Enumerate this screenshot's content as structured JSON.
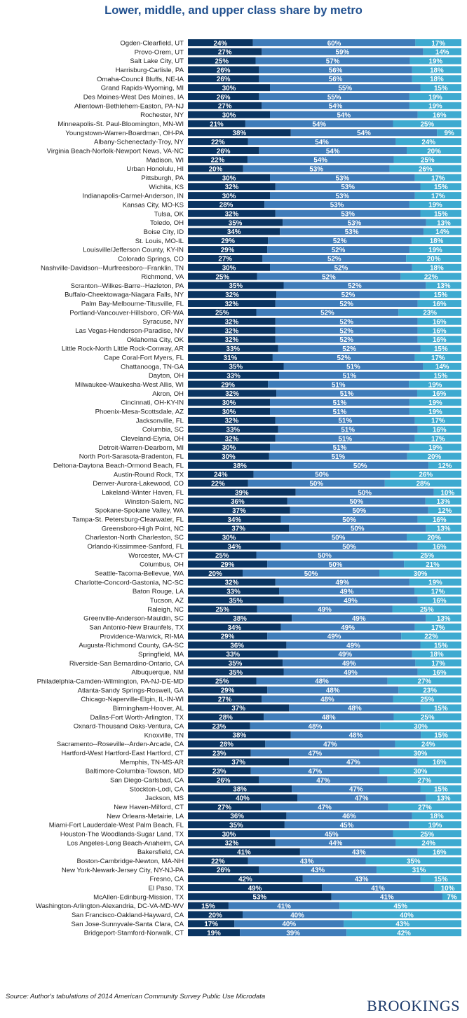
{
  "colors": {
    "lower": "#0b3562",
    "middle": "#3f7cb9",
    "upper": "#3eaad0",
    "title": "#1f4f8e"
  },
  "chart_data": {
    "type": "bar",
    "orientation": "horizontal",
    "stacked": true,
    "title": "Lower, middle, and upper class share by metro",
    "value_format": "percent",
    "xlim": [
      0,
      100
    ],
    "grid": false,
    "categories": [
      "Ogden-Clearfield, UT",
      "Provo-Orem, UT",
      "Salt Lake City, UT",
      "Harrisburg-Carlisle, PA",
      "Omaha-Council Bluffs, NE-IA",
      "Grand Rapids-Wyoming, MI",
      "Des Moines-West Des Moines, IA",
      "Allentown-Bethlehem-Easton, PA-NJ",
      "Rochester, NY",
      "Minneapolis-St. Paul-Bloomington, MN-WI",
      "Youngstown-Warren-Boardman, OH-PA",
      "Albany-Schenectady-Troy, NY",
      "Virginia Beach-Norfolk-Newport News, VA-NC",
      "Madison, WI",
      "Urban Honolulu, HI",
      "Pittsburgh, PA",
      "Wichita, KS",
      "Indianapolis-Carmel-Anderson, IN",
      "Kansas City, MO-KS",
      "Tulsa, OK",
      "Toledo, OH",
      "Boise City, ID",
      "St. Louis, MO-IL",
      "Louisville/Jefferson County, KY-IN",
      "Colorado Springs, CO",
      "Nashville-Davidson--Murfreesboro--Franklin, TN",
      "Richmond, VA",
      "Scranton--Wilkes-Barre--Hazleton, PA",
      "Buffalo-Cheektowaga-Niagara Falls, NY",
      "Palm Bay-Melbourne-Titusville, FL",
      "Portland-Vancouver-Hillsboro, OR-WA",
      "Syracuse, NY",
      "Las Vegas-Henderson-Paradise, NV",
      "Oklahoma City, OK",
      "Little Rock-North Little Rock-Conway, AR",
      "Cape Coral-Fort Myers, FL",
      "Chattanooga, TN-GA",
      "Dayton, OH",
      "Milwaukee-Waukesha-West Allis, WI",
      "Akron, OH",
      "Cincinnati, OH-KY-IN",
      "Phoenix-Mesa-Scottsdale, AZ",
      "Jacksonville, FL",
      "Columbia, SC",
      "Cleveland-Elyria, OH",
      "Detroit-Warren-Dearborn, MI",
      "North Port-Sarasota-Bradenton, FL",
      "Deltona-Daytona Beach-Ormond Beach, FL",
      "Austin-Round Rock, TX",
      "Denver-Aurora-Lakewood, CO",
      "Lakeland-Winter Haven, FL",
      "Winston-Salem, NC",
      "Spokane-Spokane Valley, WA",
      "Tampa-St. Petersburg-Clearwater, FL",
      "Greensboro-High Point, NC",
      "Charleston-North Charleston, SC",
      "Orlando-Kissimmee-Sanford, FL",
      "Worcester, MA-CT",
      "Columbus, OH",
      "Seattle-Tacoma-Bellevue, WA",
      "Charlotte-Concord-Gastonia, NC-SC",
      "Baton Rouge, LA",
      "Tucson, AZ",
      "Raleigh, NC",
      "Greenville-Anderson-Mauldin, SC",
      "San Antonio-New Braunfels, TX",
      "Providence-Warwick, RI-MA",
      "Augusta-Richmond County, GA-SC",
      "Springfield, MA",
      "Riverside-San Bernardino-Ontario, CA",
      "Albuquerque, NM",
      "Philadelphia-Camden-Wilmington, PA-NJ-DE-MD",
      "Atlanta-Sandy Springs-Roswell, GA",
      "Chicago-Naperville-Elgin, IL-IN-WI",
      "Birmingham-Hoover, AL",
      "Dallas-Fort Worth-Arlington, TX",
      "Oxnard-Thousand Oaks-Ventura, CA",
      "Knoxville, TN",
      "Sacramento--Roseville--Arden-Arcade, CA",
      "Hartford-West Hartford-East Hartford, CT",
      "Memphis, TN-MS-AR",
      "Baltimore-Columbia-Towson, MD",
      "San Diego-Carlsbad, CA",
      "Stockton-Lodi, CA",
      "Jackson, MS",
      "New Haven-Milford, CT",
      "New Orleans-Metairie, LA",
      "Miami-Fort Lauderdale-West Palm Beach, FL",
      "Houston-The Woodlands-Sugar Land, TX",
      "Los Angeles-Long Beach-Anaheim, CA",
      "Bakersfield, CA",
      "Boston-Cambridge-Newton, MA-NH",
      "New York-Newark-Jersey City, NY-NJ-PA",
      "Fresno, CA",
      "El Paso, TX",
      "McAllen-Edinburg-Mission, TX",
      "Washington-Arlington-Alexandria, DC-VA-MD-WV",
      "San Francisco-Oakland-Hayward, CA",
      "San Jose-Sunnyvale-Santa Clara, CA",
      "Bridgeport-Stamford-Norwalk, CT"
    ],
    "series": [
      {
        "key": "lower",
        "values": [
          24,
          27,
          25,
          26,
          26,
          30,
          26,
          27,
          30,
          21,
          38,
          22,
          26,
          22,
          20,
          30,
          32,
          30,
          28,
          32,
          35,
          34,
          29,
          29,
          27,
          30,
          25,
          35,
          32,
          32,
          25,
          32,
          32,
          32,
          33,
          31,
          35,
          33,
          29,
          32,
          30,
          30,
          32,
          33,
          32,
          30,
          30,
          38,
          24,
          22,
          39,
          36,
          37,
          34,
          37,
          30,
          34,
          25,
          29,
          20,
          32,
          33,
          35,
          25,
          38,
          34,
          29,
          36,
          33,
          35,
          35,
          25,
          29,
          27,
          37,
          28,
          23,
          38,
          28,
          23,
          37,
          23,
          26,
          38,
          40,
          27,
          36,
          35,
          30,
          32,
          41,
          22,
          26,
          42,
          49,
          53,
          15,
          20,
          17,
          19
        ]
      },
      {
        "key": "middle",
        "values": [
          60,
          59,
          57,
          56,
          56,
          55,
          55,
          54,
          54,
          54,
          54,
          54,
          54,
          54,
          53,
          53,
          53,
          53,
          53,
          53,
          53,
          53,
          52,
          52,
          52,
          52,
          52,
          52,
          52,
          52,
          52,
          52,
          52,
          52,
          52,
          52,
          51,
          51,
          51,
          51,
          51,
          51,
          51,
          51,
          51,
          51,
          51,
          50,
          50,
          50,
          50,
          50,
          50,
          50,
          50,
          50,
          50,
          50,
          50,
          50,
          49,
          49,
          49,
          49,
          49,
          49,
          49,
          49,
          49,
          49,
          49,
          48,
          48,
          48,
          48,
          48,
          48,
          48,
          47,
          47,
          47,
          47,
          47,
          47,
          47,
          47,
          46,
          45,
          45,
          44,
          43,
          43,
          43,
          43,
          41,
          41,
          41,
          40,
          40,
          39
        ]
      },
      {
        "key": "upper",
        "values": [
          17,
          14,
          19,
          18,
          18,
          15,
          19,
          19,
          16,
          25,
          9,
          24,
          20,
          25,
          26,
          17,
          15,
          17,
          19,
          15,
          13,
          14,
          18,
          19,
          20,
          18,
          22,
          13,
          15,
          16,
          23,
          16,
          16,
          16,
          15,
          17,
          14,
          15,
          19,
          16,
          19,
          19,
          17,
          16,
          17,
          19,
          20,
          12,
          26,
          28,
          10,
          13,
          12,
          16,
          13,
          20,
          16,
          25,
          21,
          30,
          19,
          17,
          16,
          25,
          13,
          17,
          22,
          15,
          18,
          17,
          16,
          27,
          23,
          25,
          15,
          25,
          30,
          15,
          24,
          30,
          16,
          30,
          27,
          15,
          13,
          27,
          18,
          19,
          25,
          24,
          16,
          35,
          31,
          15,
          10,
          7,
          45,
          40,
          43,
          42
        ]
      }
    ]
  },
  "footer": {
    "source": "Source: Author's tabulations of 2014 American Community Survey Public Use Microdata",
    "logo": "BROOKINGS"
  }
}
